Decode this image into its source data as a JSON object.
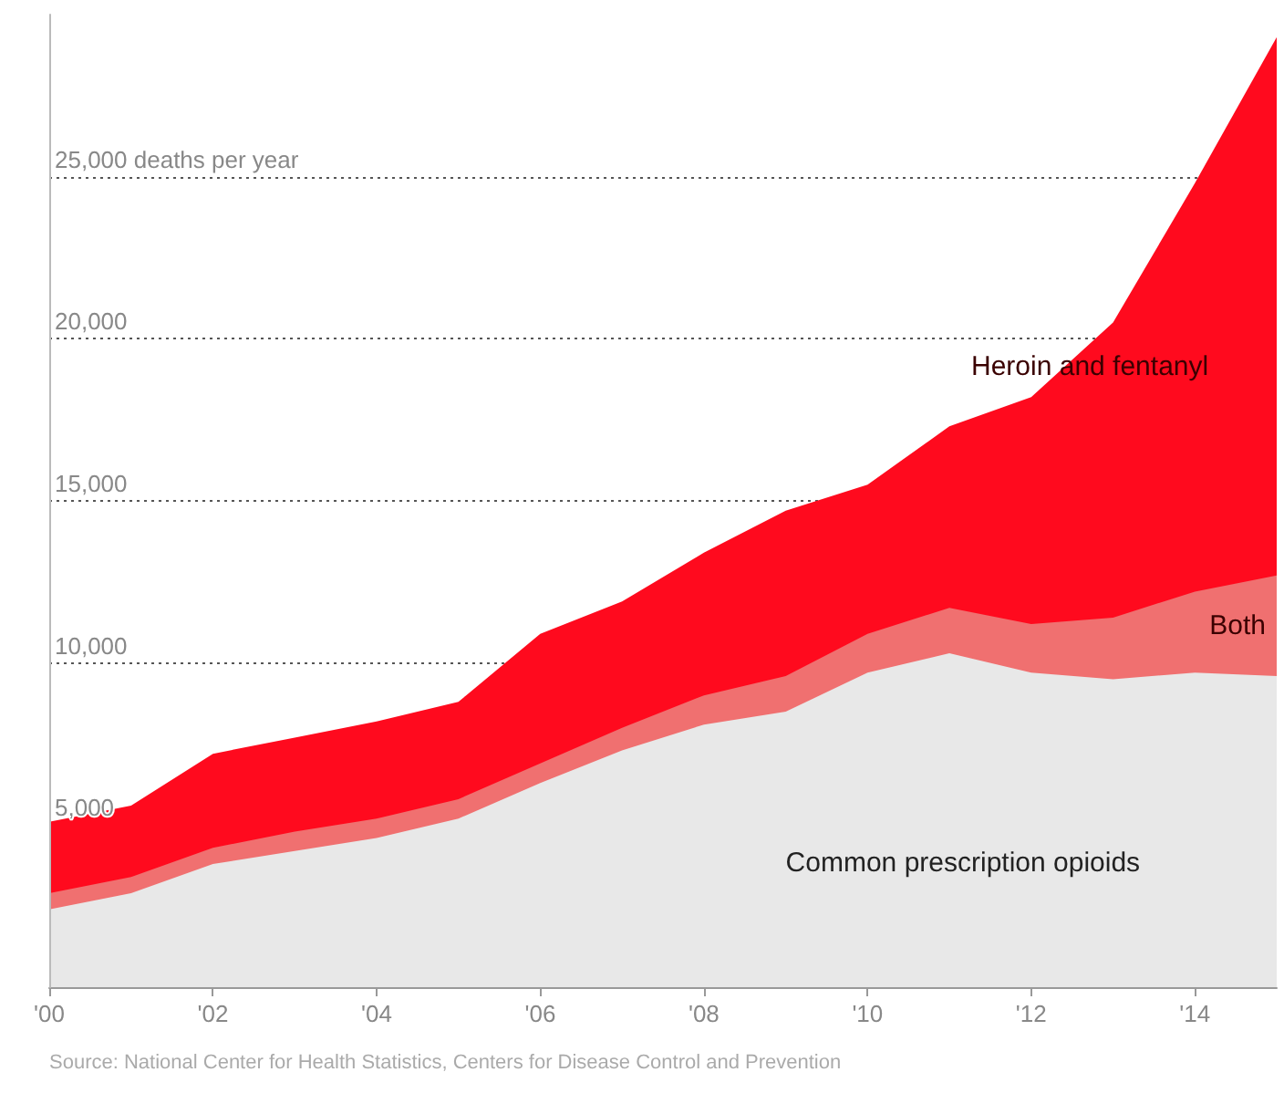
{
  "chart_data": {
    "type": "area",
    "stacked": true,
    "x": [
      2000,
      2001,
      2002,
      2003,
      2004,
      2005,
      2006,
      2007,
      2008,
      2009,
      2010,
      2011,
      2012,
      2013,
      2014,
      2015
    ],
    "series": [
      {
        "name": "Common prescription opioids",
        "color": "#e8e8e8",
        "values": [
          2400,
          2900,
          3800,
          4200,
          4600,
          5200,
          6300,
          7300,
          8100,
          8500,
          9700,
          10300,
          9700,
          9500,
          9700,
          9600
        ]
      },
      {
        "name": "Both",
        "color": "#f07070",
        "values": [
          500,
          500,
          500,
          600,
          600,
          600,
          600,
          700,
          900,
          1100,
          1200,
          1400,
          1500,
          1900,
          2500,
          3100
        ]
      },
      {
        "name": "Heroin and fentanyl",
        "color": "#ff0a1e",
        "values": [
          2200,
          2200,
          2900,
          2900,
          3000,
          3000,
          4000,
          3900,
          4400,
          5100,
          4600,
          5600,
          7000,
          9100,
          12600,
          16600
        ]
      }
    ],
    "xlim": [
      2000,
      2015
    ],
    "xticks": [
      {
        "value": 2000,
        "label": "'00"
      },
      {
        "value": 2002,
        "label": "'02"
      },
      {
        "value": 2004,
        "label": "'04"
      },
      {
        "value": 2006,
        "label": "'06"
      },
      {
        "value": 2008,
        "label": "'08"
      },
      {
        "value": 2010,
        "label": "'10"
      },
      {
        "value": 2012,
        "label": "'12"
      },
      {
        "value": 2014,
        "label": "'14"
      }
    ],
    "ylim": [
      0,
      30000
    ],
    "yticks": [
      {
        "value": 5000,
        "label": "5,000"
      },
      {
        "value": 10000,
        "label": "10,000"
      },
      {
        "value": 15000,
        "label": "15,000"
      },
      {
        "value": 20000,
        "label": "20,000"
      },
      {
        "value": 25000,
        "label": "25,000 deaths per year"
      }
    ],
    "grid": "y",
    "line_style": "dotted",
    "annotations": [
      "Source: National Center for Health Statistics, Centers for Disease Control and Prevention"
    ]
  }
}
